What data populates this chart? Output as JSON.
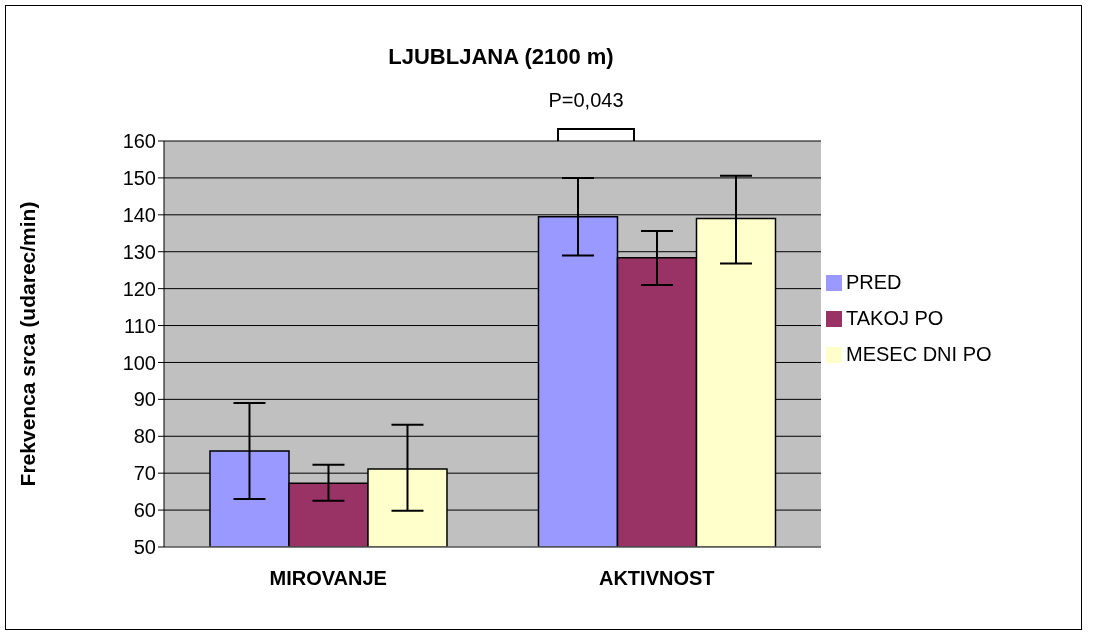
{
  "chart_data": {
    "type": "bar",
    "title": "LJUBLJANA (2100 m)",
    "ylabel": "Frekvenca srca (udarec/min)",
    "categories": [
      "MIROVANJE",
      "AKTIVNOST"
    ],
    "series": [
      {
        "name": "PRED",
        "color": "#9999ff",
        "values": [
          76,
          139.5
        ],
        "errors": [
          [
            63,
            89
          ],
          [
            129,
            150
          ]
        ]
      },
      {
        "name": "TAKOJ PO",
        "color": "#993366",
        "values": [
          67.3,
          128.4
        ],
        "errors": [
          [
            62.5,
            72.3
          ],
          [
            121,
            135.6
          ]
        ]
      },
      {
        "name": "MESEC DNI PO",
        "color": "#ffffcc",
        "values": [
          71.1,
          139
        ],
        "errors": [
          [
            59.8,
            83.1
          ],
          [
            126.8,
            150.6
          ]
        ]
      }
    ],
    "ylim": [
      50,
      160
    ],
    "yticks": [
      50,
      60,
      70,
      80,
      90,
      100,
      110,
      120,
      130,
      140,
      150,
      160
    ],
    "grid": "y",
    "legend": "right",
    "annotations": [
      "P=0,043"
    ]
  }
}
